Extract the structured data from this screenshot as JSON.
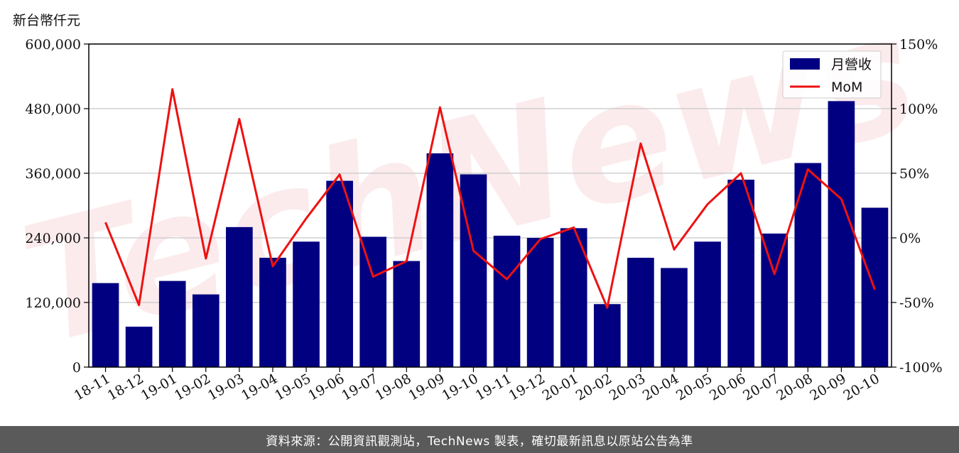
{
  "chart_data": {
    "type": "bar",
    "unit_label": "新台幣仟元",
    "categories": [
      "18-11",
      "18-12",
      "19-01",
      "19-02",
      "19-03",
      "19-04",
      "19-05",
      "19-06",
      "19-07",
      "19-08",
      "19-09",
      "19-10",
      "19-11",
      "19-12",
      "20-01",
      "20-02",
      "20-03",
      "20-04",
      "20-05",
      "20-06",
      "20-07",
      "20-08",
      "20-09",
      "20-10"
    ],
    "series": [
      {
        "name": "月營收",
        "type": "bar",
        "axis": "left",
        "color": "#000080",
        "values": [
          156000,
          75000,
          160000,
          135000,
          260000,
          203000,
          233000,
          346000,
          242000,
          197000,
          397000,
          358000,
          244000,
          240000,
          258000,
          117000,
          203000,
          184000,
          233000,
          348000,
          248000,
          379000,
          494000,
          296000
        ]
      },
      {
        "name": "MoM",
        "type": "line",
        "axis": "right",
        "color": "#ee1111",
        "values": [
          12,
          -52,
          115,
          -16,
          92,
          -22,
          15,
          49,
          -30,
          -18,
          101,
          -10,
          -32,
          -1,
          8,
          -54,
          73,
          -9,
          26,
          50,
          -28,
          53,
          30,
          -40
        ]
      }
    ],
    "ylim_left": [
      0,
      600000
    ],
    "yticks_left": [
      "0",
      "120,000",
      "240,000",
      "360,000",
      "480,000",
      "600,000"
    ],
    "ylim_right": [
      -100,
      150
    ],
    "yticks_right": [
      "-100%",
      "-50%",
      "0%",
      "50%",
      "100%",
      "150%"
    ],
    "grid": true,
    "legend_position": "top-right",
    "watermark": "TechNews"
  },
  "footer": {
    "text": "資料來源：公開資訊觀測站，TechNews 製表，確切最新訊息以原站公告為準"
  }
}
